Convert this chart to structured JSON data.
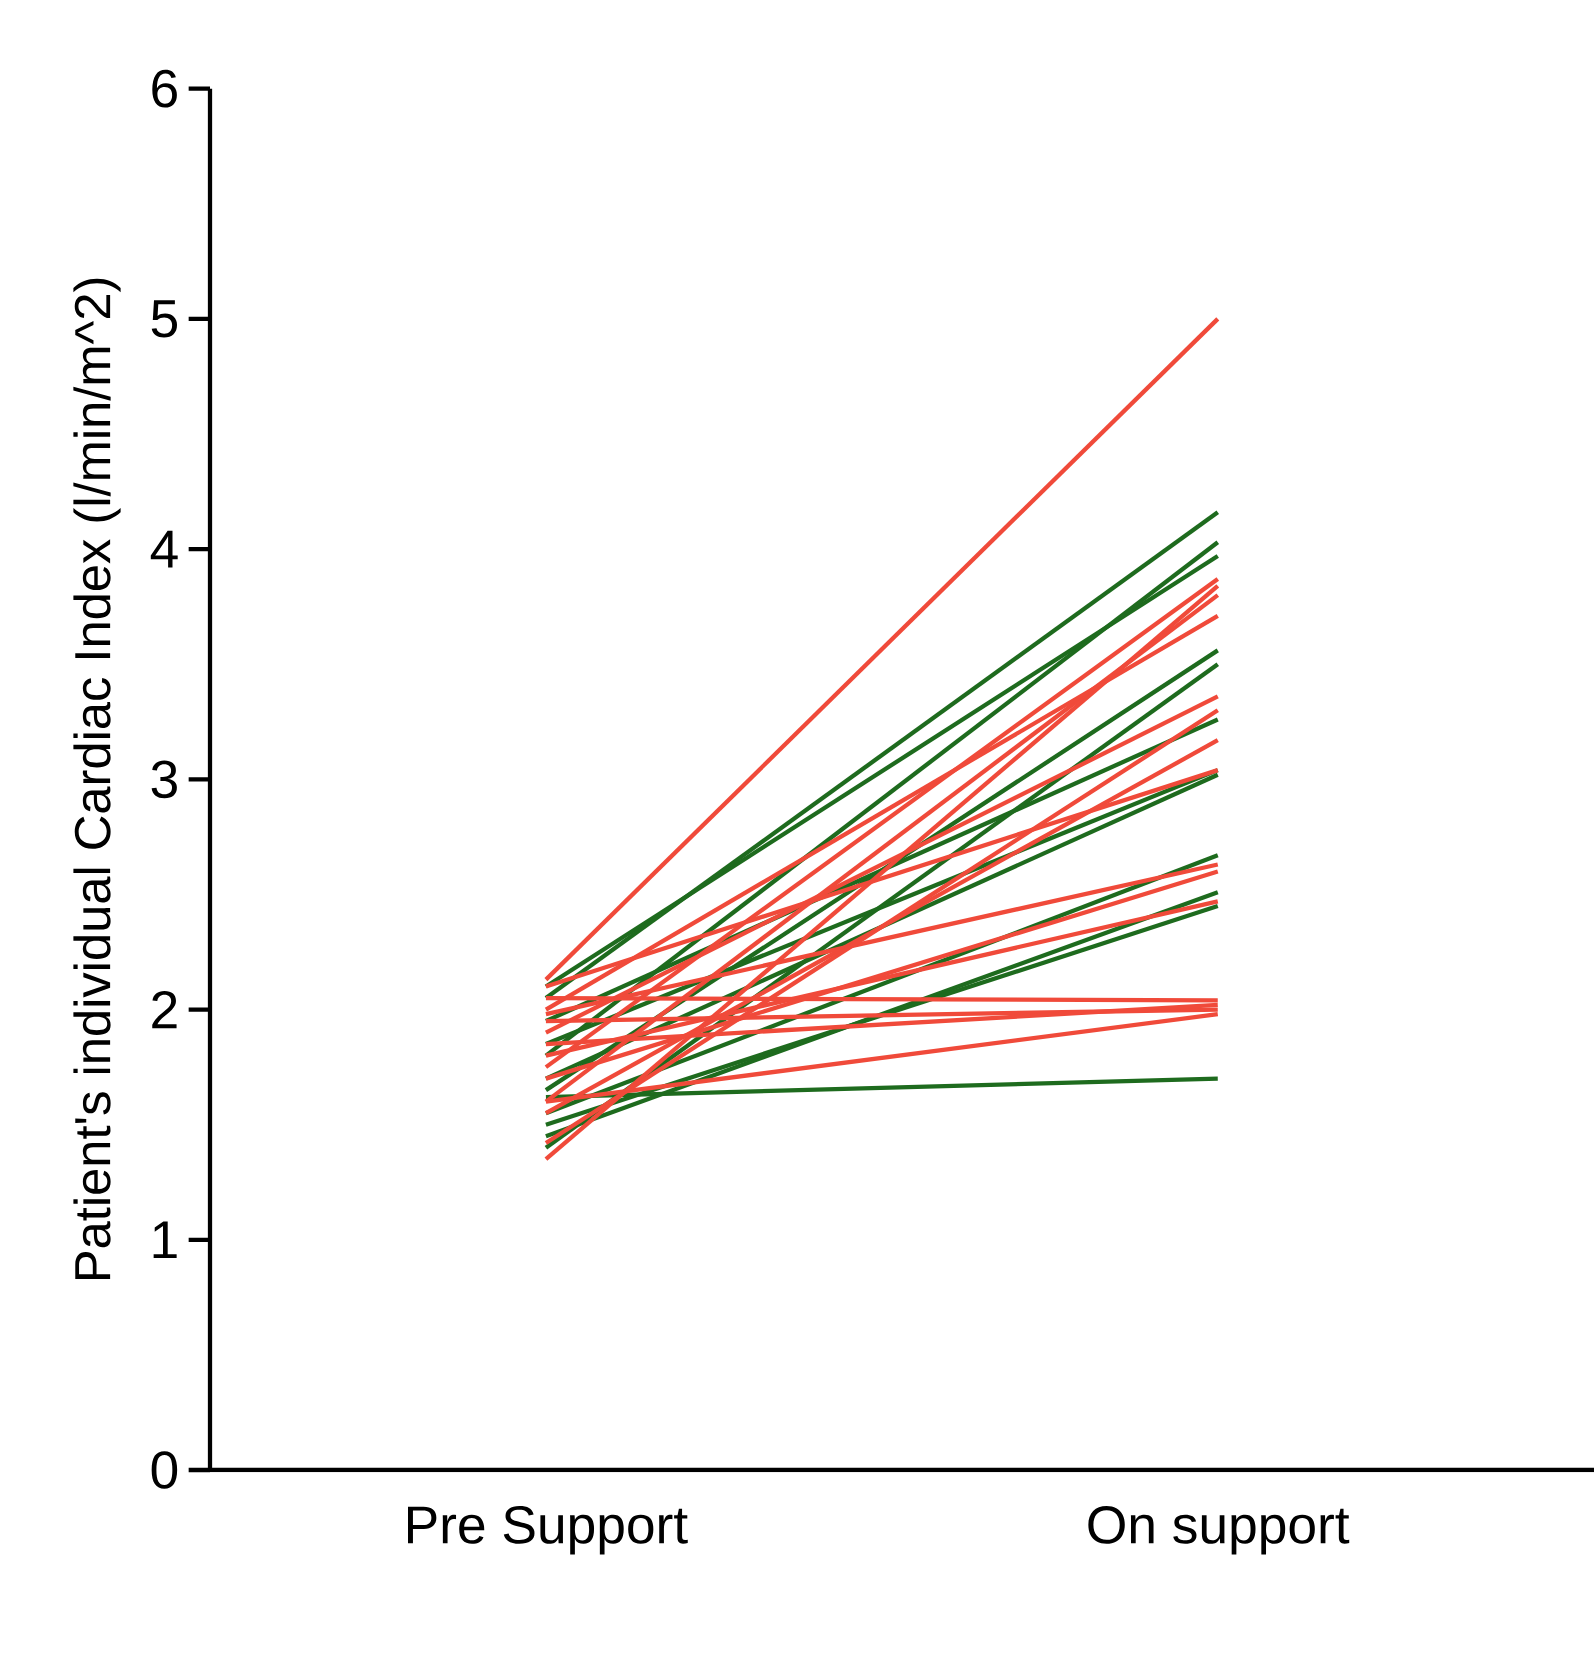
{
  "chart_data": {
    "type": "line",
    "ylabel": "Patient's individual Cardiac Index  (l/min/m^2)",
    "categories": [
      "Pre Support",
      "On support"
    ],
    "ylim": [
      0,
      6
    ],
    "yticks": [
      0,
      1,
      2,
      3,
      4,
      5,
      6
    ],
    "grid": false,
    "marker": "none",
    "line_style": "solid",
    "series": [
      {
        "color": "#1e6b1e",
        "values": [
          1.62,
          1.7
        ]
      },
      {
        "color": "#1e6b1e",
        "values": [
          1.45,
          2.51
        ]
      },
      {
        "color": "#1e6b1e",
        "values": [
          1.55,
          2.67
        ]
      },
      {
        "color": "#1e6b1e",
        "values": [
          1.7,
          3.02
        ]
      },
      {
        "color": "#1e6b1e",
        "values": [
          1.95,
          3.26
        ]
      },
      {
        "color": "#1e6b1e",
        "values": [
          1.4,
          3.5
        ]
      },
      {
        "color": "#1e6b1e",
        "values": [
          1.65,
          3.56
        ]
      },
      {
        "color": "#1e6b1e",
        "values": [
          2.1,
          3.97
        ]
      },
      {
        "color": "#1e6b1e",
        "values": [
          1.8,
          4.03
        ]
      },
      {
        "color": "#1e6b1e",
        "values": [
          2.05,
          4.16
        ]
      },
      {
        "color": "#1e6b1e",
        "values": [
          1.85,
          3.04
        ]
      },
      {
        "color": "#1e6b1e",
        "values": [
          1.5,
          2.45
        ]
      },
      {
        "color": "#f04a3a",
        "values": [
          2.13,
          5.0
        ]
      },
      {
        "color": "#f04a3a",
        "values": [
          1.35,
          3.84
        ]
      },
      {
        "color": "#f04a3a",
        "values": [
          1.6,
          3.8
        ]
      },
      {
        "color": "#f04a3a",
        "values": [
          1.75,
          3.87
        ]
      },
      {
        "color": "#f04a3a",
        "values": [
          2.0,
          3.71
        ]
      },
      {
        "color": "#f04a3a",
        "values": [
          1.9,
          3.36
        ]
      },
      {
        "color": "#f04a3a",
        "values": [
          1.55,
          3.17
        ]
      },
      {
        "color": "#f04a3a",
        "values": [
          2.1,
          3.04
        ]
      },
      {
        "color": "#f04a3a",
        "values": [
          1.98,
          2.63
        ]
      },
      {
        "color": "#f04a3a",
        "values": [
          1.8,
          2.47
        ]
      },
      {
        "color": "#f04a3a",
        "values": [
          2.05,
          2.04
        ]
      },
      {
        "color": "#f04a3a",
        "values": [
          1.95,
          2.0
        ]
      },
      {
        "color": "#f04a3a",
        "values": [
          1.85,
          2.02
        ]
      },
      {
        "color": "#f04a3a",
        "values": [
          1.6,
          1.98
        ]
      },
      {
        "color": "#f04a3a",
        "values": [
          1.7,
          2.6
        ]
      },
      {
        "color": "#f04a3a",
        "values": [
          1.42,
          3.3
        ]
      }
    ]
  }
}
